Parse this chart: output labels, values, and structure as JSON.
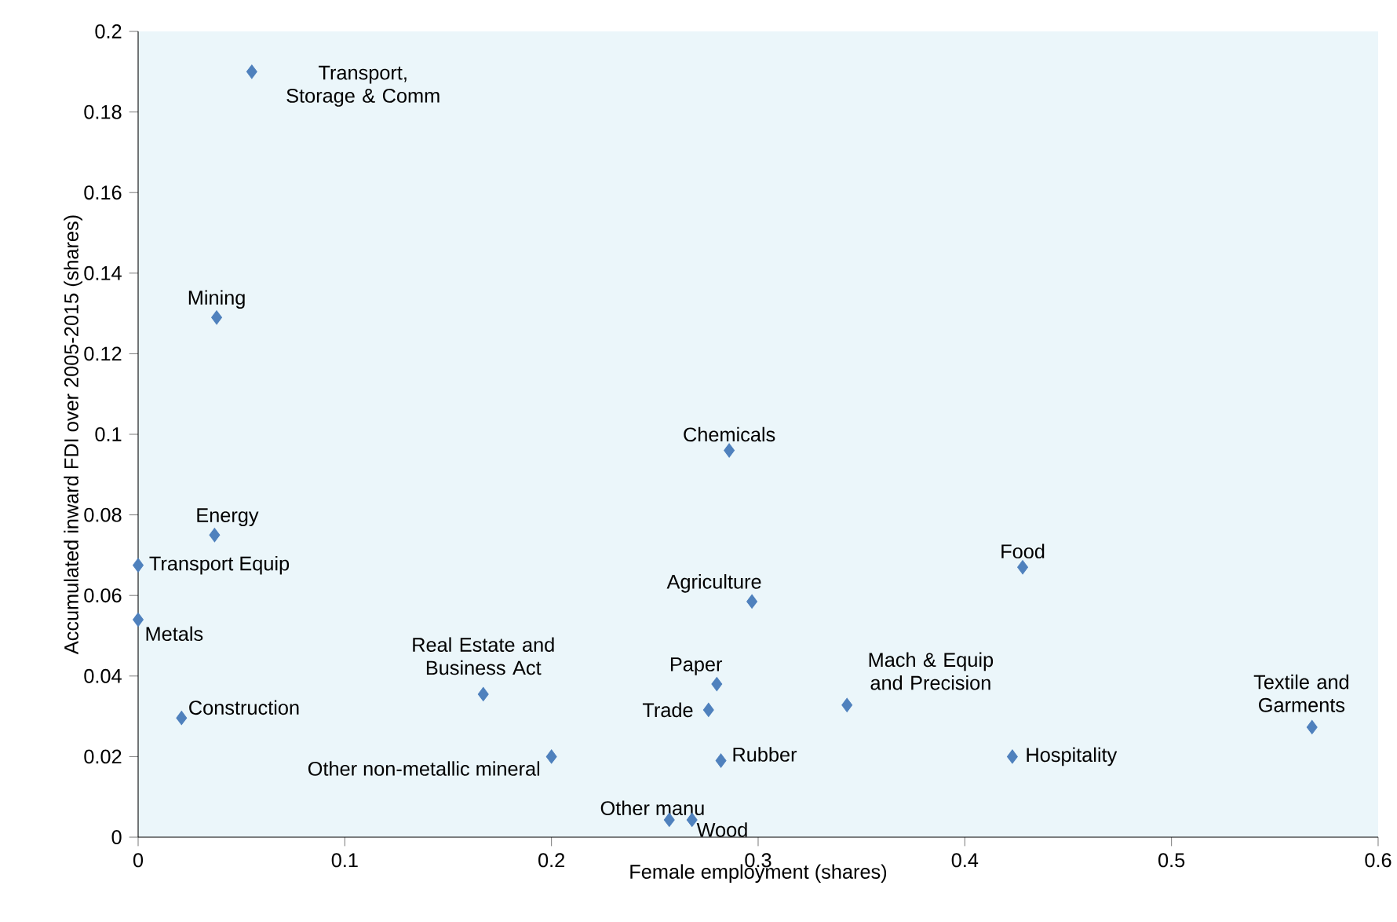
{
  "chart_data": {
    "type": "scatter",
    "xlabel": "Female employment (shares)",
    "ylabel": "Accumulated inward FDI over 2005-2015 (shares)",
    "x": [
      0.055,
      0.038,
      0.286,
      0.037,
      0,
      0.428,
      0.297,
      0,
      0.28,
      0.167,
      0.343,
      0.276,
      0.021,
      0.568,
      0.2,
      0.423,
      0.282,
      0.257,
      0.268
    ],
    "values": [
      0.19,
      0.129,
      0.096,
      0.075,
      0.0675,
      0.067,
      0.0585,
      0.054,
      0.038,
      0.0355,
      0.0328,
      0.0316,
      0.0296,
      0.0273,
      0.02,
      0.02,
      0.019,
      0.0043,
      0.0043
    ],
    "color": "#4f81bd",
    "marker": "diamond",
    "xlim": [
      0,
      0.6
    ],
    "ylim": [
      0,
      0.2
    ],
    "xticks": [
      0,
      0.1,
      0.2,
      0.3,
      0.4,
      0.5,
      0.6
    ],
    "yticks": [
      0,
      0.02,
      0.04,
      0.06,
      0.08,
      0.1,
      0.12,
      0.14,
      0.16,
      0.18,
      0.2
    ],
    "annotations": [
      {
        "text": "Transport, Storage & Comm",
        "x": 0.055,
        "y": 0.19
      },
      {
        "text": "Mining",
        "x": 0.038,
        "y": 0.129
      },
      {
        "text": "Chemicals",
        "x": 0.286,
        "y": 0.096
      },
      {
        "text": "Energy",
        "x": 0.037,
        "y": 0.075
      },
      {
        "text": "Transport Equip",
        "x": 0,
        "y": 0.0675
      },
      {
        "text": "Food",
        "x": 0.428,
        "y": 0.067
      },
      {
        "text": "Agriculture",
        "x": 0.297,
        "y": 0.0585
      },
      {
        "text": "Metals",
        "x": 0,
        "y": 0.054
      },
      {
        "text": "Paper",
        "x": 0.28,
        "y": 0.038
      },
      {
        "text": "Real Estate and Business Act",
        "x": 0.167,
        "y": 0.0355
      },
      {
        "text": "Mach & Equip and Precision",
        "x": 0.343,
        "y": 0.0328
      },
      {
        "text": "Trade",
        "x": 0.276,
        "y": 0.0316
      },
      {
        "text": "Construction",
        "x": 0.021,
        "y": 0.0296
      },
      {
        "text": "Textile and Garments",
        "x": 0.568,
        "y": 0.0273
      },
      {
        "text": "Other non-metallic mineral",
        "x": 0.2,
        "y": 0.02
      },
      {
        "text": "Hospitality",
        "x": 0.423,
        "y": 0.02
      },
      {
        "text": "Rubber",
        "x": 0.282,
        "y": 0.019
      },
      {
        "text": "Other manu",
        "x": 0.257,
        "y": 0.0043
      },
      {
        "text": "Wood",
        "x": 0.268,
        "y": 0.0043
      }
    ]
  }
}
